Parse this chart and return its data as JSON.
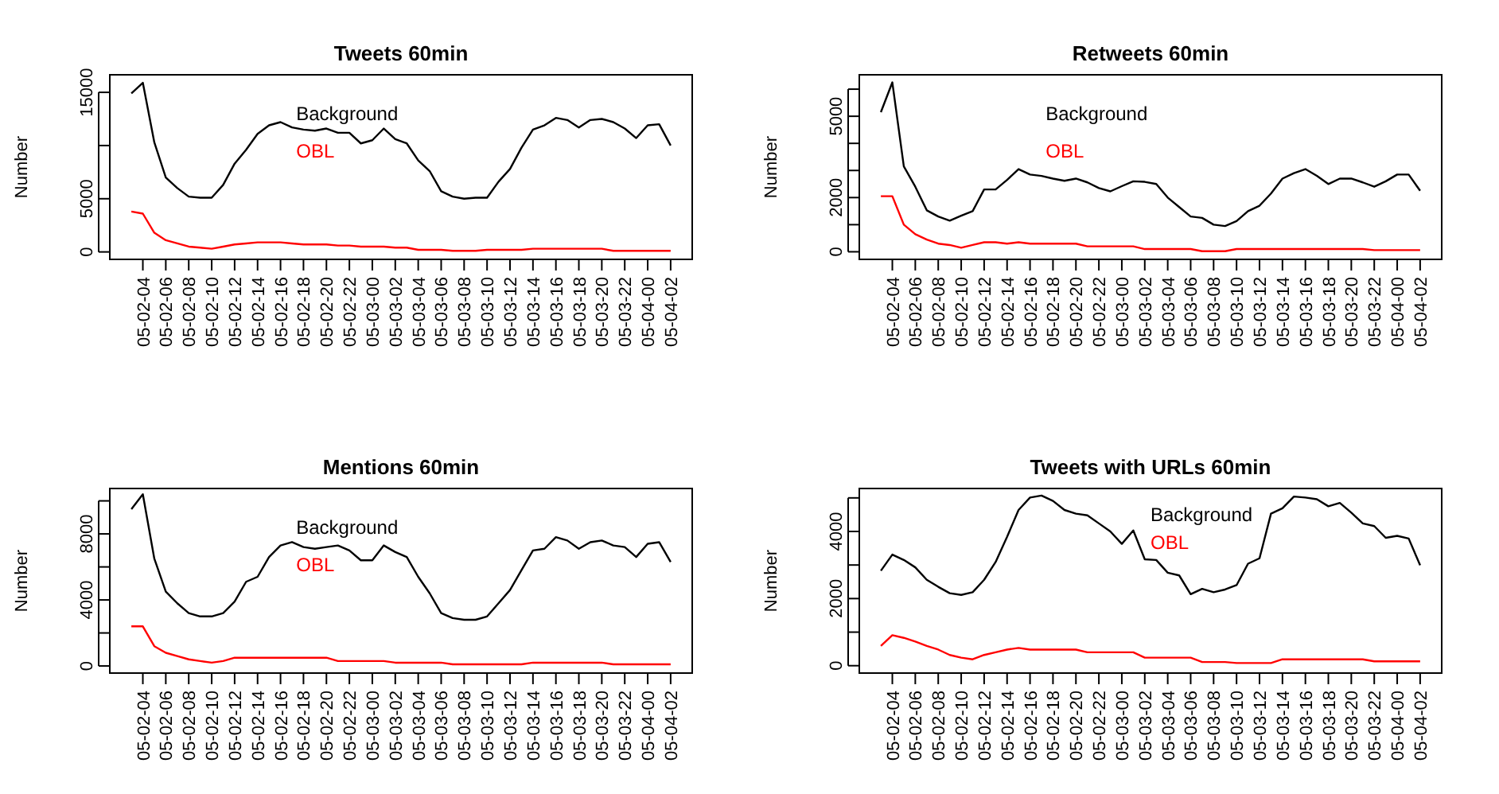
{
  "chart_data": [
    {
      "type": "line",
      "title": "Tweets 60min",
      "ylabel": "Number",
      "legend": "top",
      "ylim": [
        -700,
        16650
      ],
      "yticks": [
        0,
        5000,
        {
          "value": 10000,
          "label": null
        },
        15000
      ],
      "categories": [
        null,
        "05-02-04",
        null,
        "05-02-06",
        null,
        "05-02-08",
        null,
        "05-02-10",
        null,
        "05-02-12",
        null,
        "05-02-14",
        null,
        "05-02-16",
        null,
        "05-02-18",
        null,
        "05-02-20",
        null,
        "05-02-22",
        null,
        "05-03-00",
        null,
        "05-03-02",
        null,
        "05-03-04",
        null,
        "05-03-06",
        null,
        "05-03-08",
        null,
        "05-03-10",
        null,
        "05-03-12",
        null,
        "05-03-14",
        null,
        "05-03-16",
        null,
        "05-03-18",
        null,
        "05-03-20",
        null,
        "05-03-22",
        null,
        "05-04-00",
        null,
        "05-04-02"
      ],
      "series": [
        {
          "name": "Background",
          "color": "#000000",
          "values": [
            14900,
            15900,
            10300,
            7000,
            6000,
            5200,
            5100,
            5100,
            6300,
            8300,
            9600,
            11100,
            11900,
            12200,
            11700,
            11500,
            11400,
            11600,
            11200,
            11200,
            10200,
            10500,
            11600,
            10600,
            10200,
            8600,
            7600,
            5700,
            5200,
            5000,
            5100,
            5100,
            6600,
            7800,
            9800,
            11500,
            11900,
            12600,
            12400,
            11700,
            12400,
            12500,
            12200,
            11600,
            10700,
            11900,
            12000,
            10000
          ]
        },
        {
          "name": "OBL",
          "color": "#ff0000",
          "values": [
            3800,
            3600,
            1800,
            1100,
            800,
            500,
            400,
            300,
            500,
            700,
            800,
            900,
            900,
            900,
            800,
            700,
            700,
            700,
            600,
            600,
            500,
            500,
            500,
            400,
            400,
            200,
            200,
            200,
            100,
            100,
            100,
            200,
            200,
            200,
            200,
            300,
            300,
            300,
            300,
            300,
            300,
            300,
            100,
            100,
            100,
            100,
            100,
            100
          ]
        }
      ]
    },
    {
      "type": "line",
      "title": "Retweets 60min",
      "ylabel": "Number",
      "legend": "top",
      "ylim": [
        -280,
        6530
      ],
      "yticks": [
        0,
        {
          "value": 1000,
          "label": null
        },
        2000,
        {
          "value": 3000,
          "label": null
        },
        {
          "value": 4000,
          "label": null
        },
        5000,
        {
          "value": 6000,
          "label": null
        }
      ],
      "categories": [
        null,
        "05-02-04",
        null,
        "05-02-06",
        null,
        "05-02-08",
        null,
        "05-02-10",
        null,
        "05-02-12",
        null,
        "05-02-14",
        null,
        "05-02-16",
        null,
        "05-02-18",
        null,
        "05-02-20",
        null,
        "05-02-22",
        null,
        "05-03-00",
        null,
        "05-03-02",
        null,
        "05-03-04",
        null,
        "05-03-06",
        null,
        "05-03-08",
        null,
        "05-03-10",
        null,
        "05-03-12",
        null,
        "05-03-14",
        null,
        "05-03-16",
        null,
        "05-03-18",
        null,
        "05-03-20",
        null,
        "05-03-22",
        null,
        "05-04-00",
        null,
        "05-04-02"
      ],
      "series": [
        {
          "name": "Background",
          "color": "#000000",
          "values": [
            5150,
            6250,
            3150,
            2400,
            1530,
            1300,
            1150,
            1330,
            1500,
            2300,
            2300,
            2650,
            3050,
            2850,
            2800,
            2700,
            2620,
            2700,
            2560,
            2350,
            2230,
            2420,
            2600,
            2580,
            2500,
            2000,
            1650,
            1300,
            1250,
            1000,
            950,
            1130,
            1500,
            1700,
            2150,
            2700,
            2900,
            3050,
            2800,
            2500,
            2700,
            2700,
            2560,
            2400,
            2600,
            2850,
            2850,
            2250
          ]
        },
        {
          "name": "OBL",
          "color": "#ff0000",
          "values": [
            2050,
            2050,
            1000,
            650,
            450,
            300,
            250,
            150,
            250,
            350,
            350,
            300,
            350,
            300,
            300,
            300,
            300,
            300,
            200,
            200,
            200,
            200,
            200,
            100,
            100,
            100,
            100,
            100,
            20,
            20,
            20,
            100,
            100,
            100,
            100,
            100,
            100,
            100,
            100,
            100,
            100,
            100,
            100,
            60,
            60,
            60,
            60,
            60
          ]
        }
      ]
    },
    {
      "type": "line",
      "title": "Mentions 60min",
      "ylabel": "Number",
      "legend": "top",
      "ylim": [
        -430,
        10750
      ],
      "yticks": [
        0,
        {
          "value": 2000,
          "label": null
        },
        4000,
        {
          "value": 6000,
          "label": null
        },
        8000,
        {
          "value": 10000,
          "label": null
        }
      ],
      "categories": [
        null,
        "05-02-04",
        null,
        "05-02-06",
        null,
        "05-02-08",
        null,
        "05-02-10",
        null,
        "05-02-12",
        null,
        "05-02-14",
        null,
        "05-02-16",
        null,
        "05-02-18",
        null,
        "05-02-20",
        null,
        "05-02-22",
        null,
        "05-03-00",
        null,
        "05-03-02",
        null,
        "05-03-04",
        null,
        "05-03-06",
        null,
        "05-03-08",
        null,
        "05-03-10",
        null,
        "05-03-12",
        null,
        "05-03-14",
        null,
        "05-03-16",
        null,
        "05-03-18",
        null,
        "05-03-20",
        null,
        "05-03-22",
        null,
        "05-04-00",
        null,
        "05-04-02"
      ],
      "series": [
        {
          "name": "Background",
          "color": "#000000",
          "values": [
            9500,
            10400,
            6500,
            4500,
            3800,
            3200,
            3000,
            3000,
            3200,
            3900,
            5100,
            5400,
            6600,
            7300,
            7500,
            7200,
            7100,
            7200,
            7300,
            7000,
            6400,
            6400,
            7300,
            6900,
            6600,
            5400,
            4400,
            3200,
            2900,
            2800,
            2800,
            3000,
            3800,
            4600,
            5800,
            7000,
            7100,
            7800,
            7600,
            7100,
            7500,
            7600,
            7300,
            7200,
            6600,
            7400,
            7500,
            6300
          ]
        },
        {
          "name": "OBL",
          "color": "#ff0000",
          "values": [
            2400,
            2400,
            1200,
            800,
            600,
            400,
            300,
            200,
            300,
            500,
            500,
            500,
            500,
            500,
            500,
            500,
            500,
            500,
            300,
            300,
            300,
            300,
            300,
            200,
            200,
            200,
            200,
            200,
            100,
            100,
            100,
            100,
            100,
            100,
            100,
            200,
            200,
            200,
            200,
            200,
            200,
            200,
            100,
            100,
            100,
            100,
            100,
            100
          ]
        }
      ]
    },
    {
      "type": "line",
      "title": "Tweets with URLs 60min",
      "ylabel": "Number",
      "legend": "top",
      "ylim": [
        -220,
        5280
      ],
      "yticks": [
        0,
        {
          "value": 1000,
          "label": null
        },
        2000,
        {
          "value": 3000,
          "label": null
        },
        4000,
        {
          "value": 5000,
          "label": null
        }
      ],
      "categories": [
        null,
        "05-02-04",
        null,
        "05-02-06",
        null,
        "05-02-08",
        null,
        "05-02-10",
        null,
        "05-02-12",
        null,
        "05-02-14",
        null,
        "05-02-16",
        null,
        "05-02-18",
        null,
        "05-02-20",
        null,
        "05-02-22",
        null,
        "05-03-00",
        null,
        "05-03-02",
        null,
        "05-03-04",
        null,
        "05-03-06",
        null,
        "05-03-08",
        null,
        "05-03-10",
        null,
        "05-03-12",
        null,
        "05-03-14",
        null,
        "05-03-16",
        null,
        "05-03-18",
        null,
        "05-03-20",
        null,
        "05-03-22",
        null,
        "05-04-00",
        null,
        "05-04-02"
      ],
      "series": [
        {
          "name": "Background",
          "color": "#000000",
          "values": [
            2830,
            3310,
            3150,
            2930,
            2560,
            2350,
            2160,
            2110,
            2190,
            2560,
            3090,
            3840,
            4640,
            5010,
            5070,
            4910,
            4640,
            4530,
            4480,
            4240,
            4000,
            3630,
            4030,
            3170,
            3150,
            2770,
            2690,
            2130,
            2290,
            2190,
            2270,
            2400,
            3040,
            3200,
            4530,
            4690,
            5040,
            5010,
            4960,
            4750,
            4850,
            4560,
            4240,
            4160,
            3810,
            3870,
            3790,
            2990
          ]
        },
        {
          "name": "OBL",
          "color": "#ff0000",
          "values": [
            590,
            910,
            830,
            720,
            590,
            480,
            320,
            240,
            190,
            320,
            400,
            480,
            530,
            480,
            480,
            480,
            480,
            480,
            400,
            400,
            400,
            400,
            400,
            240,
            240,
            240,
            240,
            240,
            110,
            110,
            110,
            80,
            80,
            80,
            80,
            190,
            190,
            190,
            190,
            190,
            190,
            190,
            190,
            130,
            130,
            130,
            130,
            130
          ]
        }
      ]
    }
  ]
}
